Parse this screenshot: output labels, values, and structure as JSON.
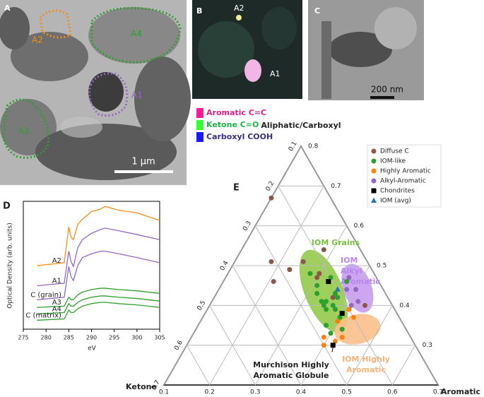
{
  "panels": {
    "A": {
      "label": "A",
      "regions": [
        "A2",
        "A4",
        "A1",
        "A3"
      ],
      "scale_bar": "1 µm"
    },
    "B": {
      "label": "B",
      "spots": [
        "A2",
        "A1"
      ]
    },
    "C": {
      "label": "C",
      "scale_bar": "200 nm"
    }
  },
  "color_key": [
    {
      "name": "Aromatic C=C",
      "color": "#ff1a9c",
      "text_color": "#e0218a"
    },
    {
      "name": "Ketone C=O",
      "color": "#33ff33",
      "text_color": "#22b14c"
    },
    {
      "name": "Carboxyl COOH",
      "color": "#1a1aff",
      "text_color": "#3a2e86"
    }
  ],
  "chart_data": [
    {
      "type": "line",
      "label": "D",
      "ylabel": "Optical Density (arb. units)",
      "xlabel": "eV",
      "x": [
        278,
        284,
        285,
        285.5,
        286,
        287,
        288,
        290,
        292,
        293,
        296,
        300,
        305
      ],
      "xlim": [
        275,
        305
      ],
      "xticks": [
        275,
        280,
        285,
        290,
        295,
        300,
        305
      ],
      "ylim": [
        0,
        10
      ],
      "series": [
        {
          "name": "A2",
          "color": "#f28e1c",
          "values": [
            4.97,
            5.2,
            8.0,
            7.2,
            7.0,
            8.2,
            8.6,
            9.2,
            9.4,
            9.6,
            9.3,
            9.1,
            8.5
          ]
        },
        {
          "name": "A1",
          "color": "#9467bd",
          "values": [
            3.4,
            3.6,
            6.1,
            5.3,
            4.9,
            6.4,
            7.0,
            7.5,
            7.8,
            7.9,
            7.7,
            7.4,
            7.0
          ]
        },
        {
          "name": "C (grain)",
          "color": "#9467bd",
          "values": [
            2.3,
            2.5,
            4.9,
            4.1,
            3.8,
            5.0,
            5.6,
            5.9,
            6.1,
            6.1,
            5.9,
            5.6,
            5.2
          ]
        },
        {
          "name": "A3",
          "color": "#2ca02c",
          "values": [
            1.7,
            1.8,
            2.5,
            2.3,
            2.3,
            2.7,
            2.9,
            3.1,
            3.2,
            3.2,
            3.1,
            3.0,
            2.8
          ]
        },
        {
          "name": "A4",
          "color": "#2ca02c",
          "values": [
            1.2,
            1.3,
            2.0,
            1.8,
            1.8,
            2.1,
            2.3,
            2.5,
            2.6,
            2.6,
            2.5,
            2.4,
            2.2
          ]
        },
        {
          "name": "C (matrix)",
          "color": "#2ca02c",
          "values": [
            0.7,
            0.8,
            1.5,
            1.3,
            1.3,
            1.6,
            1.8,
            2.0,
            2.1,
            2.1,
            2.0,
            1.9,
            1.7
          ]
        }
      ]
    },
    {
      "type": "ternary",
      "label": "E",
      "aliphatic_title": "Aliphatic/Carboxyl",
      "aliphatic_lim": [
        0.2,
        0.8
      ],
      "aliphatic_ticks": [
        0.3,
        0.4,
        0.5,
        0.6,
        0.7,
        0.8
      ],
      "ketone_title": "Ketone",
      "ketone_lim": [
        0.1,
        0.7
      ],
      "ketone_ticks": [
        0.1,
        0.2,
        0.3,
        0.4,
        0.5,
        0.6,
        0.7
      ],
      "aromatic_title": "Aromatic",
      "aromatic_lim": [
        0.1,
        0.7
      ],
      "aromatic_ticks": [
        0.1,
        0.2,
        0.3,
        0.4,
        0.5,
        0.6,
        0.7
      ],
      "grid": true,
      "legend": "upper right",
      "regions": [
        {
          "label": [
            "IOM Grains"
          ],
          "color": "#7ac143"
        },
        {
          "label": [
            "IOM",
            "Alkyl",
            "Aromatic"
          ],
          "color": "#b685f0"
        },
        {
          "label": [
            "IOM Highly",
            "Aromatic"
          ],
          "color": "#f7b27a"
        }
      ],
      "annotation": [
        "Murchison Highly",
        "Aromatic Globule"
      ],
      "series": [
        {
          "name": "Diffuse C",
          "color": "#8c564b",
          "marker": "circle",
          "aromatic": [
            0.1,
            0.18,
            0.21,
            0.23,
            0.25,
            0.3,
            0.3,
            0.33,
            0.36,
            0.4,
            0.28,
            0.44
          ],
          "aliphatic": [
            0.67,
            0.51,
            0.46,
            0.49,
            0.51,
            0.47,
            0.48,
            0.46,
            0.42,
            0.38,
            0.54,
            0.4
          ]
        },
        {
          "name": "IOM-like",
          "color": "#2ca02c",
          "marker": "circle",
          "aromatic": [
            0.28,
            0.31,
            0.32,
            0.34,
            0.35,
            0.36,
            0.35,
            0.37,
            0.38,
            0.4,
            0.36,
            0.37,
            0.33,
            0.37,
            0.38,
            0.42,
            0.4
          ],
          "aliphatic": [
            0.48,
            0.45,
            0.43,
            0.41,
            0.4,
            0.39,
            0.41,
            0.4,
            0.39,
            0.37,
            0.43,
            0.42,
            0.47,
            0.46,
            0.35,
            0.34,
            0.33
          ]
        },
        {
          "name": "Highly Aromatic",
          "color": "#ff7f0e",
          "marker": "circle",
          "aromatic": [
            0.4,
            0.41,
            0.43,
            0.39,
            0.4,
            0.43,
            0.42
          ],
          "aliphatic": [
            0.36,
            0.39,
            0.32,
            0.32,
            0.3,
            0.37,
            0.31
          ]
        },
        {
          "name": "Alkyl-Aromatic",
          "color": "#9467bd",
          "marker": "circle",
          "aromatic": [
            0.37,
            0.4,
            0.42,
            0.41,
            0.38
          ],
          "aliphatic": [
            0.47,
            0.44,
            0.41,
            0.4,
            0.44
          ]
        },
        {
          "name": "Chondrites",
          "color": "#000000",
          "marker": "square",
          "aromatic": [
            0.33,
            0.4,
            0.42
          ],
          "aliphatic": [
            0.46,
            0.38,
            0.3
          ]
        },
        {
          "name": "IOM (avg)",
          "color": "#1f77b4",
          "marker": "triangle",
          "aromatic": [
            0.36
          ],
          "aliphatic": [
            0.44
          ]
        }
      ]
    }
  ]
}
